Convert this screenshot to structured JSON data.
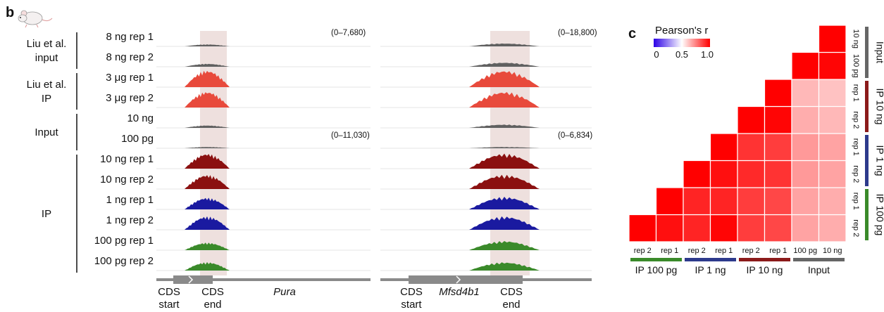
{
  "panels": {
    "b": "b",
    "c": "c"
  },
  "track_groups": [
    {
      "label": [
        "Liu et al.",
        "input"
      ],
      "color": "#606060",
      "tracks": [
        "8 ng rep 1",
        "8 ng rep 2"
      ],
      "heights": [
        [
          0.12,
          0.18
        ],
        [
          0.18,
          0.25
        ]
      ],
      "amp": 1.0
    },
    {
      "label": [
        "Liu et al.",
        "IP"
      ],
      "color": "#e84a3c",
      "tracks": [
        "3 μg rep 1",
        "3 μg rep 2"
      ],
      "heights": [
        [
          1.0,
          1.0
        ],
        [
          0.95,
          0.95
        ]
      ],
      "amp": 1.0
    },
    {
      "label": [
        "Input"
      ],
      "color": "#606060",
      "tracks": [
        "10 ng",
        "100 pg"
      ],
      "heights": [
        [
          0.15,
          0.2
        ],
        [
          0.08,
          0.08
        ]
      ],
      "amp": 1.0
    },
    {
      "label": [
        "IP"
      ],
      "color": "#8b1010",
      "tracks": [
        "10 ng rep 1",
        "10 ng rep 2"
      ],
      "heights": [
        [
          0.9,
          0.9
        ],
        [
          0.85,
          0.85
        ]
      ],
      "amp": 1.0
    },
    {
      "label": [],
      "color": "#1a1aa0",
      "tracks": [
        "1 ng rep 1",
        "1 ng rep 2"
      ],
      "heights": [
        [
          0.7,
          0.75
        ],
        [
          0.8,
          0.8
        ]
      ],
      "amp": 1.0
    },
    {
      "label": [],
      "color": "#3a8a2a",
      "tracks": [
        "100 pg rep 1",
        "100 pg rep 2"
      ],
      "heights": [
        [
          0.45,
          0.55
        ],
        [
          0.5,
          0.5
        ]
      ],
      "amp": 1.0
    }
  ],
  "ranges": {
    "pura_top": "(0–7,680)",
    "mfsd_top": "(0–18,800)",
    "pura_mid": "(0–11,030)",
    "mfsd_mid": "(0–6,834)"
  },
  "genes": {
    "pura": {
      "name": "Pura",
      "cds_start": [
        "CDS",
        "start"
      ],
      "cds_end": [
        "CDS",
        "end"
      ]
    },
    "mfsd": {
      "name": "Mfsd4b1",
      "cds_start": [
        "CDS",
        "start"
      ],
      "cds_end": [
        "CDS",
        "end"
      ]
    }
  },
  "chart_data": {
    "type": "heatmap",
    "title": "",
    "legend": {
      "title": "Pearson's r",
      "ticks": [
        "0",
        "0.5",
        "1.0"
      ]
    },
    "labels": [
      "IP 100 pg rep 2",
      "IP 100 pg rep 1",
      "IP 1 ng rep 2",
      "IP 1 ng rep 1",
      "IP 10 ng rep 2",
      "IP 10 ng rep 1",
      "Input 100 pg",
      "Input 10 ng"
    ],
    "x_tick_labels": [
      "rep 2",
      "rep 1",
      "rep 2",
      "rep 1",
      "rep 2",
      "rep 1",
      "100 pg",
      "10 ng"
    ],
    "y_tick_labels": [
      "10 ng",
      "100 pg",
      "rep 1",
      "rep 2",
      "rep 1",
      "rep 2",
      "rep 1",
      "rep 2"
    ],
    "x_groups": [
      {
        "name": "IP 100 pg",
        "color": "#3a8a2a"
      },
      {
        "name": "IP 1 ng",
        "color": "#2d3a8c"
      },
      {
        "name": "IP 10 ng",
        "color": "#8b1a1a"
      },
      {
        "name": "Input",
        "color": "#666666"
      }
    ],
    "y_groups": [
      {
        "name": "Input",
        "color": "#666666"
      },
      {
        "name": "IP 10 ng",
        "color": "#8b1a1a"
      },
      {
        "name": "IP 1 ng",
        "color": "#2d3a8c"
      },
      {
        "name": "IP 100 pg",
        "color": "#3a8a2a"
      }
    ],
    "matrix": [
      [
        1.0,
        null,
        null,
        null,
        null,
        null,
        null,
        null
      ],
      [
        0.97,
        1.0,
        null,
        null,
        null,
        null,
        null,
        null
      ],
      [
        0.93,
        0.93,
        1.0,
        null,
        null,
        null,
        null,
        null
      ],
      [
        0.99,
        0.93,
        0.97,
        1.0,
        null,
        null,
        null,
        null
      ],
      [
        0.88,
        0.88,
        0.92,
        0.9,
        1.0,
        null,
        null,
        null
      ],
      [
        0.86,
        0.86,
        0.9,
        0.88,
        0.99,
        1.0,
        null,
        null
      ],
      [
        0.68,
        0.68,
        0.7,
        0.7,
        0.66,
        0.64,
        1.0,
        null
      ],
      [
        0.66,
        0.66,
        0.68,
        0.68,
        0.64,
        0.62,
        0.99,
        1.0
      ]
    ],
    "colorscale": [
      "#2b00e6",
      "#ffffff",
      "#ff0000"
    ],
    "range": [
      0,
      1.0
    ]
  }
}
